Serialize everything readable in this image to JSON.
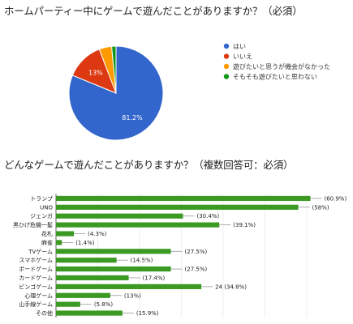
{
  "chart_data": [
    {
      "type": "pie",
      "title": "ホームパーティー中にゲームで遊んだことがありますか？（必須）",
      "categories": [
        "はい",
        "いいえ",
        "遊びたいと思うが機会がなかった",
        "そもそも遊びたいと思わない"
      ],
      "values": [
        81.2,
        13.0,
        4.3,
        1.5
      ],
      "slice_labels": [
        "81.2%",
        "13%",
        "",
        ""
      ],
      "colors": [
        "#3366cc",
        "#dc3912",
        "#ff9900",
        "#109618"
      ],
      "legend": "right"
    },
    {
      "type": "bar",
      "orientation": "horizontal",
      "title": "どんなゲームで遊んだことがありますか？（複数回答可：必須）",
      "categories": [
        "トランプ",
        "UNO",
        "ジェンガ",
        "黒ひげ危機一髪",
        "花札",
        "麻雀",
        "TVゲーム",
        "スマホゲーム",
        "ボードゲーム",
        "カードゲーム",
        "ビンゴゲーム",
        "心理ゲーム",
        "山手線ゲーム",
        "その他"
      ],
      "values": [
        60.9,
        58,
        30.4,
        39.1,
        4.3,
        1.4,
        27.5,
        14.5,
        27.5,
        17.4,
        34.8,
        13,
        5.8,
        15.9
      ],
      "data_labels": [
        "(60.9%)",
        "(58%)",
        "(30.4%)",
        "(39.1%)",
        "(4.3%)",
        "(1.4%)",
        "(27.5%)",
        "(14.5%)",
        "(27.5%)",
        "(17.4%)",
        "24 (34.8%)",
        "(13%)",
        "(5.8%)",
        "(15.9%)"
      ],
      "color": "#3a9a22",
      "xlim": [
        0,
        61
      ]
    }
  ]
}
